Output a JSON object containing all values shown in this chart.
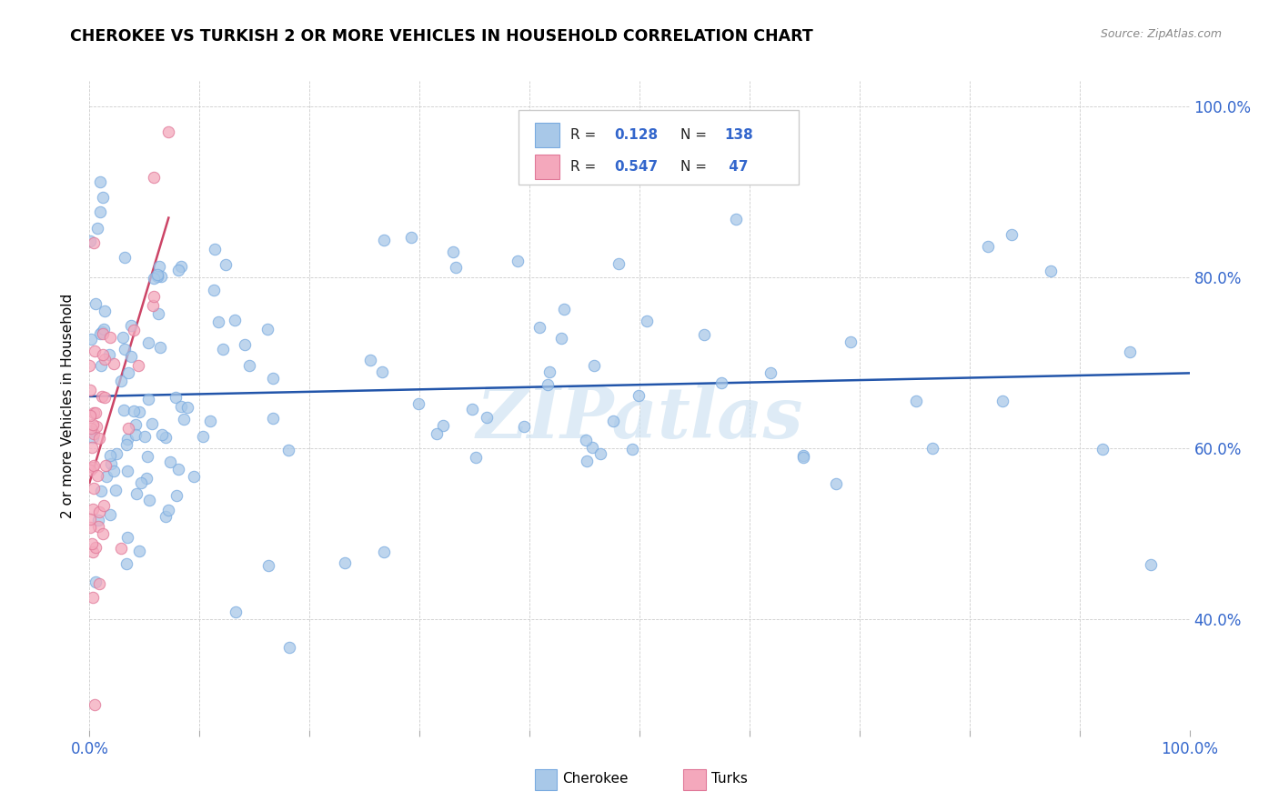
{
  "title": "CHEROKEE VS TURKISH 2 OR MORE VEHICLES IN HOUSEHOLD CORRELATION CHART",
  "source": "Source: ZipAtlas.com",
  "ylabel": "2 or more Vehicles in Household",
  "cherokee_R": 0.128,
  "cherokee_N": 138,
  "turks_R": 0.547,
  "turks_N": 47,
  "cherokee_color": "#a8c8e8",
  "cherokee_edge_color": "#7aabe0",
  "turks_color": "#f4a8bc",
  "turks_edge_color": "#e07898",
  "cherokee_line_color": "#2255aa",
  "turks_line_color": "#cc4466",
  "legend_R_color": "#3366cc",
  "legend_N_color": "#3366cc",
  "watermark_color": "#c8dff0",
  "grid_color": "#cccccc",
  "tick_color": "#3366cc",
  "xlim": [
    0.0,
    1.0
  ],
  "ylim": [
    0.27,
    1.03
  ],
  "y_ticks": [
    0.4,
    0.6,
    0.8,
    1.0
  ],
  "y_tick_labels": [
    "40.0%",
    "60.0%",
    "80.0%",
    "100.0%"
  ],
  "x_tick_show": [
    "0.0%",
    "100.0%"
  ],
  "marker_size": 80,
  "line_width": 1.8
}
